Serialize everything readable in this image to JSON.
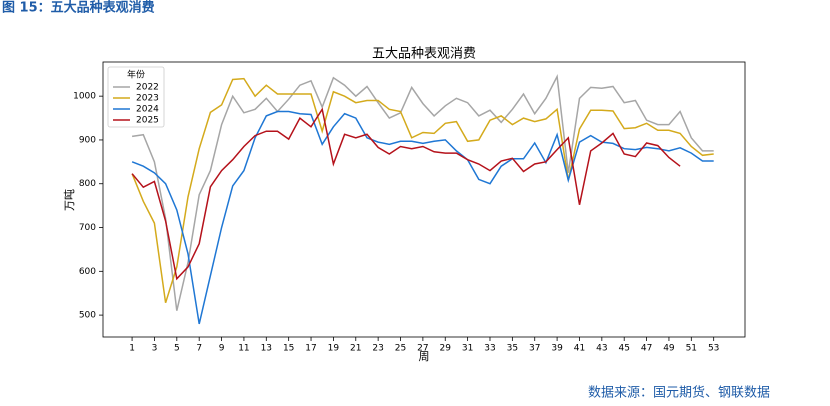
{
  "header": {
    "caption": "图 15：五大品种表观消费"
  },
  "footer": {
    "source": "数据来源：国元期货、钢联数据"
  },
  "chart_data": {
    "type": "line",
    "title": "五大品种表观消费",
    "xlabel": "周",
    "ylabel": "万吨",
    "legend_title": "年份",
    "legend": "upper left",
    "x": [
      1,
      2,
      3,
      4,
      5,
      6,
      7,
      8,
      9,
      10,
      11,
      12,
      13,
      14,
      15,
      16,
      17,
      18,
      19,
      20,
      21,
      22,
      23,
      24,
      25,
      26,
      27,
      28,
      29,
      30,
      31,
      32,
      33,
      34,
      35,
      36,
      37,
      38,
      39,
      40,
      41,
      42,
      43,
      44,
      45,
      46,
      47,
      48,
      49,
      50,
      51,
      52,
      53
    ],
    "xlim": [
      -1.6,
      55.8
    ],
    "xticks": [
      1,
      3,
      5,
      7,
      9,
      11,
      13,
      15,
      17,
      19,
      21,
      23,
      25,
      27,
      29,
      31,
      33,
      35,
      37,
      39,
      41,
      43,
      45,
      47,
      49,
      51,
      53
    ],
    "ylim": [
      450,
      1078
    ],
    "yticks": [
      500,
      600,
      700,
      800,
      900,
      1000
    ],
    "series": [
      {
        "name": "2022",
        "color": "#a6a6a6",
        "values": [
          908,
          912,
          850,
          720,
          510,
          620,
          775,
          830,
          935,
          1000,
          962,
          970,
          995,
          965,
          993,
          1025,
          1035,
          975,
          1042,
          1025,
          1000,
          1022,
          985,
          950,
          962,
          1020,
          983,
          955,
          978,
          995,
          985,
          955,
          968,
          940,
          970,
          1005,
          960,
          995,
          1045,
          825,
          995,
          1020,
          1018,
          1022,
          985,
          990,
          945,
          935,
          935,
          965,
          905,
          875,
          875
        ]
      },
      {
        "name": "2023",
        "color": "#d4aa1c",
        "values": [
          823,
          760,
          710,
          528,
          610,
          770,
          880,
          963,
          980,
          1038,
          1040,
          1000,
          1025,
          1005,
          1005,
          1005,
          1005,
          920,
          1010,
          1000,
          985,
          990,
          990,
          970,
          965,
          905,
          917,
          915,
          938,
          942,
          897,
          900,
          945,
          955,
          935,
          950,
          942,
          948,
          970,
          808,
          925,
          968,
          968,
          966,
          926,
          928,
          938,
          922,
          922,
          915,
          885,
          865,
          868
        ]
      },
      {
        "name": "2024",
        "color": "#1f77d4",
        "values": [
          850,
          840,
          825,
          800,
          740,
          640,
          480,
          590,
          700,
          795,
          830,
          905,
          955,
          965,
          965,
          960,
          958,
          890,
          930,
          960,
          950,
          905,
          895,
          890,
          897,
          897,
          892,
          897,
          900,
          875,
          855,
          810,
          800,
          840,
          857,
          857,
          893,
          848,
          912,
          808,
          895,
          910,
          895,
          892,
          880,
          878,
          883,
          880,
          875,
          882,
          870,
          852,
          852
        ]
      },
      {
        "name": "2025",
        "color": "#b5121b",
        "values": [
          823,
          792,
          805,
          715,
          583,
          610,
          663,
          793,
          830,
          855,
          885,
          910,
          920,
          920,
          902,
          950,
          930,
          970,
          845,
          913,
          905,
          913,
          883,
          868,
          885,
          880,
          885,
          873,
          870,
          870,
          855,
          845,
          830,
          852,
          858,
          828,
          845,
          850,
          878,
          905,
          752,
          875,
          893,
          915,
          868,
          862,
          893,
          887,
          860,
          840,
          null,
          null,
          null
        ]
      }
    ]
  }
}
